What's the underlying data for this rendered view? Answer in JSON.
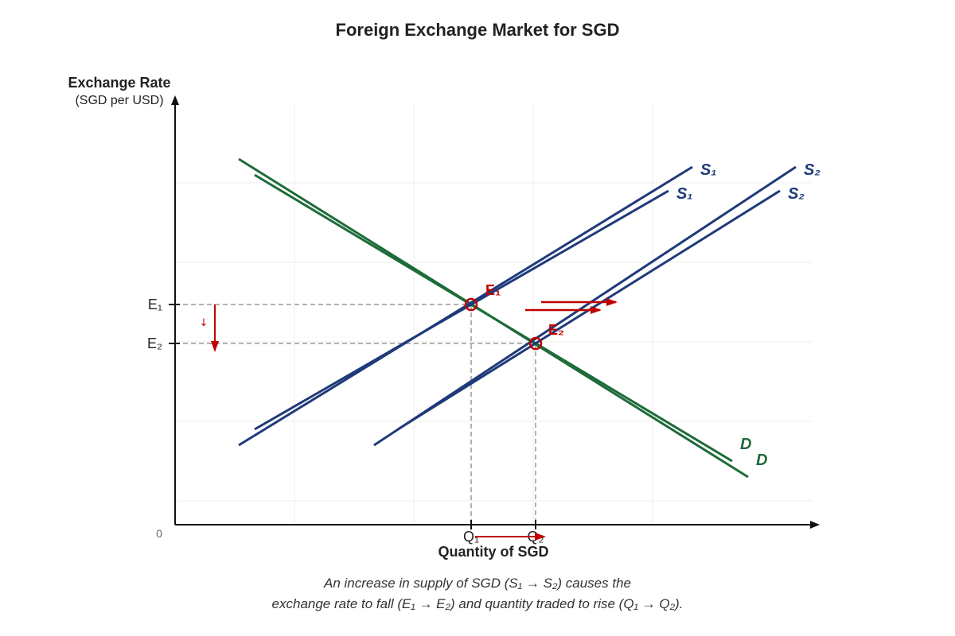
{
  "title": "Foreign Exchange Market for SGD",
  "y_axis": {
    "label": "Exchange Rate",
    "sublabel": "(SGD per USD)"
  },
  "x_axis": {
    "label": "Quantity of SGD"
  },
  "origin_label": "0",
  "ticks": {
    "y": [
      "E₁",
      "E₂"
    ],
    "x": [
      "Q₁",
      "Q₂"
    ]
  },
  "curves": {
    "supply_1": "S₁",
    "supply_2": "S₂",
    "demand": "D"
  },
  "equilibria": {
    "e1": "E₁",
    "e2": "E₂"
  },
  "small_arrow_glyph": "↓",
  "colors": {
    "supply": "#1f3a7a",
    "demand": "#1e6b3a",
    "marker": "#c00000",
    "guide": "#999999",
    "grid": "#eeeeee",
    "axis": "#111111"
  },
  "caption": {
    "line1": "An increase in supply of SGD (S₁ → S₂) causes the",
    "line2": "exchange rate to fall (E₁ → E₂) and quantity traded to rise (Q₁ → Q₂)."
  }
}
